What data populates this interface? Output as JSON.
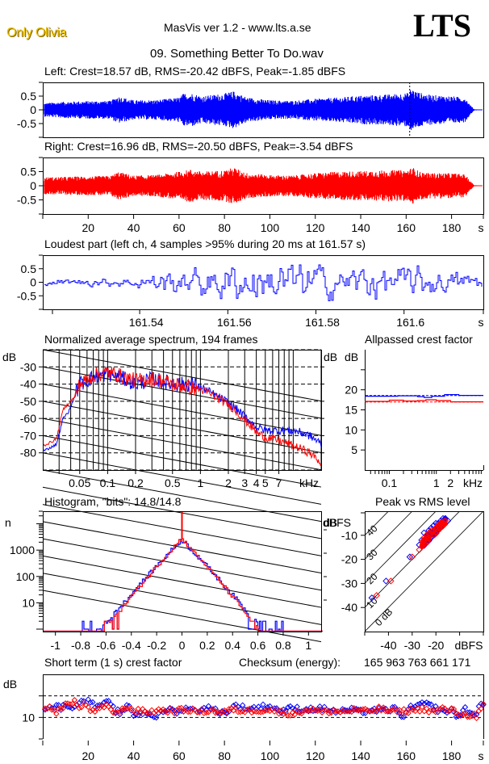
{
  "header": {
    "artist": "Only Olivia",
    "app_title": "MasVis ver 1.2 - www.lts.a.se",
    "logo": "LTS",
    "file_name": "09. Something Better To Do.wav"
  },
  "colors": {
    "left": "#0000ff",
    "right": "#ff0000",
    "grid": "#000000"
  },
  "chart_data": [
    {
      "id": "left-waveform",
      "type": "line",
      "title": "Left: Crest=18.57 dB, RMS=-20.42 dBFS, Peak=-1.85 dBFS",
      "channel": "left",
      "crest_db": 18.57,
      "rms_dbfs": -20.42,
      "peak_dbfs": -1.85,
      "xlim": [
        0,
        194
      ],
      "ylim": [
        -1,
        1
      ],
      "yticks": [
        "0.5",
        "0",
        "-0.5"
      ],
      "marker_time_s": 161.57,
      "envelope": {
        "t": [
          1,
          10,
          20,
          30,
          33,
          40,
          50,
          60,
          62,
          66,
          70,
          80,
          84,
          90,
          100,
          110,
          120,
          130,
          140,
          150,
          158,
          161.5,
          162,
          165,
          170,
          180,
          186,
          188,
          190,
          194
        ],
        "peak": [
          0.25,
          0.3,
          0.32,
          0.33,
          0.5,
          0.35,
          0.36,
          0.45,
          0.6,
          0.6,
          0.5,
          0.6,
          0.68,
          0.45,
          0.35,
          0.33,
          0.4,
          0.45,
          0.52,
          0.55,
          0.6,
          0.62,
          0.8,
          0.65,
          0.55,
          0.5,
          0.45,
          0.2,
          0.02,
          0.01
        ]
      }
    },
    {
      "id": "right-waveform",
      "type": "line",
      "title": "Right: Crest=16.96 dB, RMS=-20.50 dBFS, Peak=-3.54 dBFS",
      "channel": "right",
      "crest_db": 16.96,
      "rms_dbfs": -20.5,
      "peak_dbfs": -3.54,
      "xlim": [
        0,
        194
      ],
      "ylim": [
        -1,
        1
      ],
      "yticks": [
        "0.5",
        "0",
        "-0.5"
      ],
      "xticks": [
        "20",
        "40",
        "60",
        "80",
        "100",
        "120",
        "140",
        "160",
        "180"
      ],
      "xunit": "s",
      "envelope": {
        "t": [
          1,
          10,
          20,
          30,
          33,
          40,
          50,
          60,
          65,
          70,
          80,
          84,
          90,
          100,
          110,
          120,
          130,
          140,
          150,
          160,
          163,
          166,
          170,
          180,
          186,
          188,
          190,
          194
        ],
        "peak": [
          0.3,
          0.32,
          0.33,
          0.35,
          0.5,
          0.36,
          0.38,
          0.5,
          0.58,
          0.5,
          0.55,
          0.65,
          0.45,
          0.38,
          0.36,
          0.45,
          0.5,
          0.52,
          0.55,
          0.55,
          0.65,
          0.5,
          0.45,
          0.45,
          0.4,
          0.2,
          0.02,
          0.01
        ]
      }
    },
    {
      "id": "loudest-part",
      "type": "line",
      "title": "Loudest part (left  ch, 4 samples >95% during 20 ms at 161.57 s)",
      "xlim": [
        161.518,
        161.618
      ],
      "ylim": [
        -1,
        1
      ],
      "yticks": [
        "0.5",
        "0",
        "-0.5"
      ],
      "xticks": [
        "161.54",
        "161.56",
        "161.58",
        "161.6"
      ],
      "xtick_values": [
        161.54,
        161.56,
        161.58,
        161.6
      ],
      "xunit": "s",
      "amplitude_profile": {
        "t": [
          161.518,
          161.535,
          161.545,
          161.555,
          161.565,
          161.575,
          161.585,
          161.595,
          161.605,
          161.618
        ],
        "amp": [
          0.08,
          0.12,
          0.3,
          0.45,
          0.6,
          0.55,
          0.5,
          0.45,
          0.4,
          0.25
        ]
      }
    },
    {
      "id": "spectrum",
      "type": "line",
      "title": "Normalized average spectrum, 194 frames",
      "ylabel": "dB",
      "xunit": "kHz",
      "xscale": "log",
      "xlim_khz": [
        0.02,
        20
      ],
      "ylim": [
        -90,
        -20
      ],
      "yticks": [
        "-30",
        "-40",
        "-50",
        "-60",
        "-70",
        "-80"
      ],
      "ytick_values": [
        -30,
        -40,
        -50,
        -60,
        -70,
        -80
      ],
      "xticks": [
        "0.05",
        "0.1",
        "0.2",
        "0.5",
        "1",
        "2",
        "3",
        "4",
        "5",
        "7"
      ],
      "xtick_values": [
        0.05,
        0.1,
        0.2,
        0.5,
        1,
        2,
        3,
        4,
        5,
        7
      ],
      "series": [
        {
          "name": "left",
          "f_khz": [
            0.02,
            0.028,
            0.033,
            0.038,
            0.045,
            0.05,
            0.07,
            0.1,
            0.15,
            0.2,
            0.3,
            0.5,
            0.8,
            1,
            1.5,
            2,
            3,
            4,
            5,
            7,
            10,
            15,
            20
          ],
          "db": [
            -79,
            -75,
            -60,
            -56,
            -46,
            -40,
            -36,
            -34,
            -37,
            -40,
            -37,
            -40,
            -40,
            -42,
            -47,
            -51,
            -59,
            -65,
            -67,
            -67,
            -67,
            -70,
            -75
          ]
        },
        {
          "name": "right",
          "f_khz": [
            0.02,
            0.028,
            0.033,
            0.038,
            0.045,
            0.05,
            0.07,
            0.1,
            0.15,
            0.2,
            0.3,
            0.5,
            0.8,
            1,
            1.5,
            2,
            3,
            4,
            5,
            7,
            10,
            15,
            20
          ],
          "db": [
            -76,
            -72,
            -55,
            -51,
            -47,
            -40,
            -35,
            -33,
            -36,
            -38,
            -37,
            -40,
            -42,
            -43,
            -48,
            -52,
            -61,
            -68,
            -71,
            -73,
            -76,
            -80,
            -86
          ]
        }
      ]
    },
    {
      "id": "allpassed-crest",
      "type": "line",
      "title": "Allpassed crest factor",
      "ylabel": "dB",
      "xunit": "kHz",
      "xscale": "log",
      "xlim_khz": [
        0.03,
        10
      ],
      "ylim": [
        0,
        30
      ],
      "yticks": [
        "20",
        "15",
        "10",
        "5"
      ],
      "ytick_values": [
        20,
        15,
        10,
        5
      ],
      "xticks": [
        "0.1",
        "1",
        "2"
      ],
      "xtick_values": [
        0.1,
        1,
        2
      ],
      "series": [
        {
          "name": "left",
          "f_khz": [
            0.03,
            0.15,
            0.4,
            0.55,
            0.8,
            1.5,
            3,
            10
          ],
          "db": [
            18.4,
            18.5,
            18.3,
            18.1,
            18.4,
            18.8,
            18.6,
            18.6
          ],
          "reference_db": 18.57
        },
        {
          "name": "right",
          "f_khz": [
            0.03,
            0.1,
            0.2,
            0.4,
            0.6,
            1,
            2,
            10
          ],
          "db": [
            17.1,
            17.4,
            17.2,
            17.3,
            17.5,
            17.3,
            17.0,
            17.0
          ],
          "reference_db": 16.96
        }
      ]
    },
    {
      "id": "histogram",
      "type": "line",
      "title": "Histogram, \"bits\": 14.8/14.8",
      "ylabel": "n",
      "yscale": "log",
      "ylim": [
        1,
        30000
      ],
      "xlim": [
        -1.1,
        1.1
      ],
      "yticks": [
        "1000",
        "100",
        "10"
      ],
      "ytick_values": [
        1000,
        100,
        10
      ],
      "xticks": [
        "-1",
        "-0.8",
        "-0.6",
        "-0.4",
        "-0.2",
        "0",
        "0.2",
        "0.4",
        "0.6",
        "0.8",
        "1"
      ],
      "xtick_values": [
        -1,
        -0.8,
        -0.6,
        -0.4,
        -0.2,
        0,
        0.2,
        0.4,
        0.6,
        0.8,
        1
      ],
      "series": [
        {
          "name": "left",
          "peak_count": 2500,
          "x_extent": [
            -0.8,
            0.8
          ],
          "slope_per_unit": 4.9
        },
        {
          "name": "right",
          "peak_count": 2800,
          "x_extent": [
            -0.65,
            0.65
          ],
          "slope_per_unit": 5.2,
          "zero_spike": 30000
        }
      ]
    },
    {
      "id": "peak-vs-rms",
      "type": "scatter",
      "title": "Peak vs RMS level",
      "xlabel": "dBFS",
      "ylabel": "dBFS",
      "xlim": [
        -50,
        0
      ],
      "ylim": [
        -50,
        0
      ],
      "xticks": [
        "-40",
        "-30",
        "-20"
      ],
      "xtick_values": [
        -40,
        -30,
        -20
      ],
      "yticks": [
        "-10",
        "-20",
        "-30",
        "-40"
      ],
      "ytick_values": [
        -10,
        -20,
        -30,
        -40
      ],
      "crest_lines_db": [
        0,
        10,
        20,
        30,
        40
      ],
      "crest_labels": [
        "0 dB",
        "10",
        "20",
        "30",
        "40"
      ],
      "series": [
        {
          "name": "left",
          "rms": [
            -47,
            -41,
            -31,
            -27,
            -26,
            -25,
            -24,
            -23,
            -22,
            -21,
            -20,
            -19,
            -18,
            -17,
            -16,
            -15,
            -24,
            -22,
            -20
          ],
          "peak": [
            -36,
            -29,
            -19,
            -14,
            -12,
            -9,
            -10,
            -8,
            -7,
            -6,
            -5,
            -5,
            -4,
            -3,
            -3,
            -4,
            -13,
            -11,
            -9
          ]
        },
        {
          "name": "right",
          "rms": [
            -45,
            -39,
            -30,
            -27,
            -25,
            -24,
            -23,
            -22,
            -21,
            -20,
            -19,
            -18,
            -17,
            -16,
            -25,
            -23,
            -21,
            -19
          ],
          "peak": [
            -35,
            -29,
            -19,
            -16,
            -11,
            -10,
            -9,
            -8,
            -8,
            -7,
            -6,
            -5,
            -5,
            -4,
            -12,
            -11,
            -10,
            -8
          ]
        }
      ]
    },
    {
      "id": "short-term-crest",
      "type": "scatter",
      "title": "Short term (1 s) crest factor",
      "checksum_label": "Checksum (energy):",
      "checksum_value": "165 963 763 661 171",
      "ylabel": "dB",
      "xlim": [
        0,
        194
      ],
      "ylim": [
        5,
        20
      ],
      "yticks": [
        "10"
      ],
      "ytick_values": [
        10
      ],
      "dashed_lines_db": [
        10,
        15
      ],
      "xticks": [
        "20",
        "40",
        "60",
        "80",
        "100",
        "120",
        "140",
        "160",
        "180"
      ],
      "xunit": "s",
      "series": [
        {
          "name": "left",
          "t": [
            2,
            5,
            8,
            11,
            14,
            17,
            19,
            21,
            24,
            26,
            29,
            32,
            35,
            38,
            40,
            45,
            50,
            55,
            60,
            63,
            67,
            72,
            77,
            80,
            85,
            90,
            95,
            99,
            105,
            110,
            115,
            120,
            125,
            130,
            135,
            140,
            145,
            150,
            155,
            159,
            162,
            166,
            170,
            175,
            180,
            183,
            186,
            190,
            193
          ],
          "db": [
            12.2,
            12.6,
            12.3,
            13.0,
            12.0,
            14.5,
            13.5,
            13.8,
            12.2,
            13.2,
            13.3,
            11.5,
            11.0,
            13.0,
            10.5,
            11.3,
            10.2,
            12.0,
            11.2,
            12.3,
            11.5,
            12.3,
            11.5,
            11.0,
            12.8,
            12.0,
            12.3,
            12.7,
            11.5,
            12.2,
            11.8,
            12.0,
            12.0,
            11.2,
            11.8,
            11.3,
            11.8,
            11.5,
            12.0,
            10.2,
            12.2,
            13.0,
            13.0,
            11.5,
            11.5,
            10.2,
            12.0,
            10.5,
            12.8
          ]
        },
        {
          "name": "right",
          "t": [
            1,
            3,
            6,
            9,
            12,
            14,
            16,
            18,
            20,
            22,
            25,
            28,
            31,
            34,
            37,
            41,
            46,
            52,
            58,
            64,
            69,
            74,
            79,
            84,
            89,
            94,
            100,
            106,
            112,
            117,
            123,
            128,
            133,
            138,
            143,
            148,
            153,
            157,
            163,
            168,
            172,
            176,
            181,
            184,
            187,
            189,
            191,
            194
          ],
          "db": [
            11.8,
            12.8,
            11.3,
            12.3,
            13.5,
            13.8,
            12.0,
            13.0,
            12.5,
            11.2,
            12.0,
            12.5,
            11.5,
            11.2,
            12.5,
            11.5,
            11.3,
            11.7,
            11.5,
            11.8,
            11.3,
            11.7,
            11.2,
            11.8,
            11.5,
            11.7,
            11.8,
            11.0,
            11.0,
            12.0,
            11.3,
            11.5,
            11.3,
            11.8,
            11.3,
            12.0,
            11.5,
            11.3,
            11.7,
            12.0,
            11.3,
            12.0,
            11.5,
            10.8,
            10.5,
            10.8,
            10.3,
            12.6
          ]
        }
      ]
    }
  ]
}
